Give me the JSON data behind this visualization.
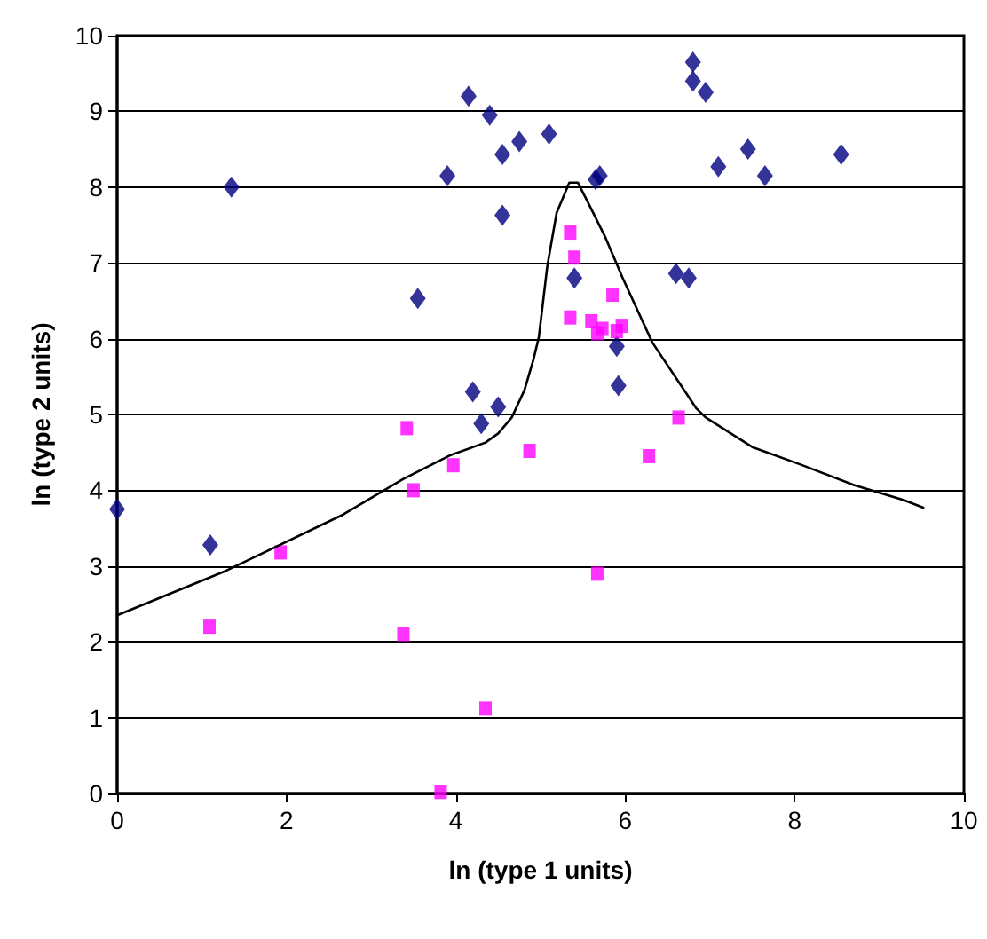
{
  "chart_data": {
    "type": "scatter",
    "xlabel": "ln (type 1 units)",
    "ylabel": "ln (type 2 units)",
    "xlim": [
      0,
      10
    ],
    "xticks": [
      0,
      2,
      4,
      6,
      8,
      10
    ],
    "ylim": [
      0,
      10
    ],
    "yticks": [
      0,
      1,
      2,
      3,
      4,
      5,
      6,
      7,
      8,
      9,
      10
    ],
    "grid": "y",
    "series": [
      {
        "marker": "diamond",
        "color": "#000080",
        "x": [
          0,
          1.1,
          1.35,
          3.55,
          3.9,
          4.15,
          4.4,
          4.55,
          4.55,
          4.75,
          5.1,
          5.65,
          5.7,
          5.4,
          5.9,
          5.92,
          6.6,
          6.75,
          6.8,
          6.8,
          6.95,
          7.1,
          7.45,
          7.65,
          8.55,
          4.2,
          4.3,
          4.5
        ],
        "values": [
          3.75,
          3.28,
          8.0,
          6.53,
          8.15,
          9.2,
          8.95,
          8.43,
          7.63,
          8.6,
          8.7,
          8.1,
          8.15,
          6.8,
          5.9,
          5.38,
          6.86,
          6.8,
          9.65,
          9.4,
          9.25,
          8.27,
          8.5,
          8.15,
          8.43,
          5.3,
          4.88,
          5.1
        ]
      },
      {
        "marker": "square",
        "color": "#ff00ff",
        "x": [
          5.35,
          5.4,
          5.85,
          5.35,
          5.6,
          5.67,
          5.73,
          5.9,
          5.96,
          3.42,
          3.97,
          3.5,
          1.93,
          1.09,
          3.38,
          4.35,
          3.82,
          4.87,
          6.63,
          6.28,
          5.67
        ],
        "values": [
          7.4,
          7.07,
          6.58,
          6.28,
          6.23,
          6.07,
          6.13,
          6.1,
          6.17,
          4.82,
          4.33,
          4.0,
          3.18,
          2.2,
          2.1,
          1.12,
          0.02,
          4.52,
          4.96,
          4.45,
          2.9
        ]
      },
      {
        "type": "line",
        "marker": "none",
        "line_style": "solid",
        "color": "#000000",
        "x": [
          0,
          1.27,
          2.67,
          3.38,
          3.93,
          4.35,
          4.5,
          4.66,
          4.81,
          4.92,
          4.98,
          5.08,
          5.19,
          5.34,
          5.44,
          5.55,
          5.76,
          5.97,
          6.32,
          6.84,
          6.95,
          7.5,
          8.07,
          8.7,
          9.29,
          9.52
        ],
        "values": [
          2.35,
          2.93,
          3.68,
          4.15,
          4.46,
          4.63,
          4.75,
          4.96,
          5.32,
          5.74,
          6.02,
          6.96,
          7.66,
          8.06,
          8.06,
          7.82,
          7.35,
          6.8,
          5.95,
          5.08,
          4.96,
          4.57,
          4.34,
          4.07,
          3.87,
          3.77
        ]
      }
    ]
  }
}
